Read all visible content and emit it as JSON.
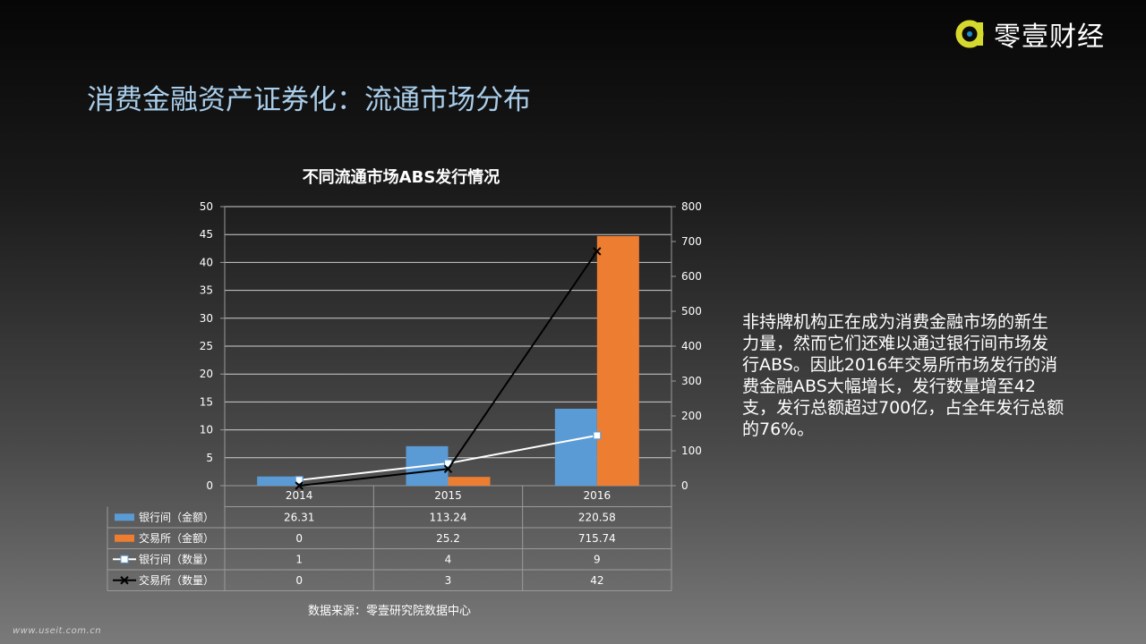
{
  "brand": {
    "logo_text": "零壹财经",
    "logo_icon": "brand-logo-icon",
    "accent_color": "#d5d92e"
  },
  "page": {
    "title": "消费金融资产证券化：流通市场分布",
    "description": "非持牌机构正在成为消费金融市场的新生力量，然而它们还难以通过银行间市场发行ABS。因此2016年交易所市场发行的消费金融ABS大幅增长，发行数量增至42支，发行总额超过700亿，占全年发行总额的76%。",
    "source": "数据来源：零壹研究院数据中心",
    "watermark": "www.useit.com.cn"
  },
  "chart_data": {
    "type": "bar",
    "title": "不同流通市场ABS发行情况",
    "categories": [
      "2014",
      "2015",
      "2016"
    ],
    "left_axis": {
      "min": 0,
      "max": 50,
      "ticks": [
        "0",
        "5",
        "10",
        "15",
        "20",
        "25",
        "30",
        "35",
        "40",
        "45",
        "50"
      ]
    },
    "right_axis": {
      "min": 0,
      "max": 800,
      "ticks": [
        "0",
        "100",
        "200",
        "300",
        "400",
        "500",
        "600",
        "700",
        "800"
      ]
    },
    "grid": true,
    "legend": "data-table",
    "series": [
      {
        "name": "银行间（金额）",
        "kind": "bar",
        "axis": "right",
        "color": "#5b9bd5",
        "values": [
          26.31,
          113.24,
          220.58
        ],
        "labels": [
          "26.31",
          "113.24",
          "220.58"
        ]
      },
      {
        "name": "交易所（金额）",
        "kind": "bar",
        "axis": "right",
        "color": "#ed7d31",
        "values": [
          0,
          25.2,
          715.74
        ],
        "labels": [
          "0",
          "25.2",
          "715.74"
        ]
      },
      {
        "name": "银行间（数量）",
        "kind": "line",
        "marker": "square",
        "axis": "left",
        "color": "#ffffff",
        "values": [
          1,
          4,
          9
        ],
        "labels": [
          "1",
          "4",
          "9"
        ]
      },
      {
        "name": "交易所（数量）",
        "kind": "line",
        "marker": "x",
        "axis": "left",
        "color": "#000000",
        "values": [
          0,
          3,
          42
        ],
        "labels": [
          "0",
          "3",
          "42"
        ]
      }
    ]
  }
}
